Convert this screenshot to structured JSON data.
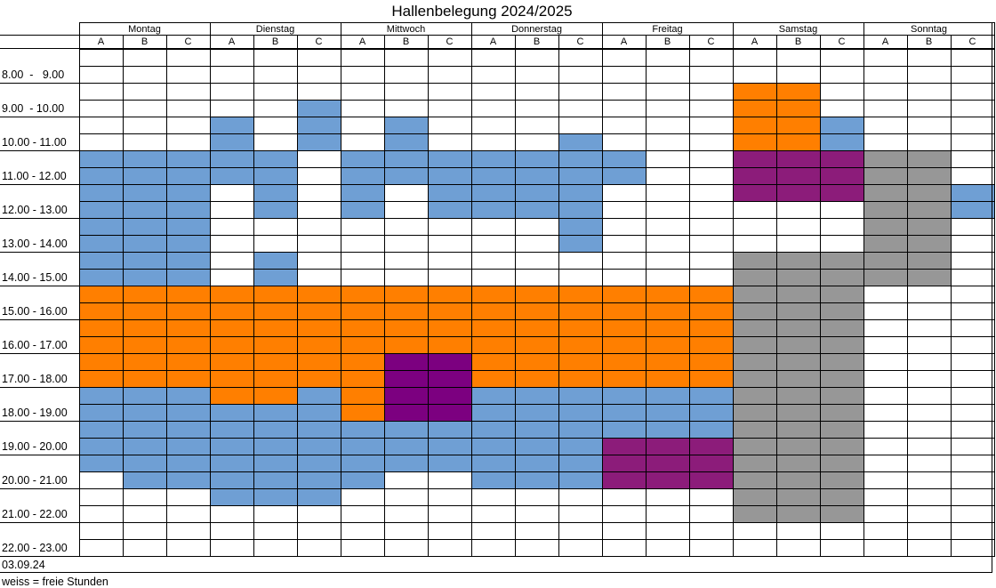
{
  "title": "Hallenbelegung 2024/2025",
  "days": [
    "Montag",
    "Dienstag",
    "Mittwoch",
    "Donnerstag",
    "Freitag",
    "Samstag",
    "Sonntag"
  ],
  "courts": [
    "A",
    "B",
    "C"
  ],
  "time_slots": [
    "8.00  -   9.00",
    "9.00  - 10.00",
    "10.00 - 11.00",
    "11.00 - 12.00",
    "12.00 - 13.00",
    "13.00 - 14.00",
    "14.00 - 15.00",
    "15.00 - 16.00",
    "16.00 - 17.00",
    "17.00 - 18.00",
    "18.00 - 19.00",
    "19.00 - 20.00",
    "20.00 - 21.00",
    "21.00 - 22.00",
    "22.00 - 23.00"
  ],
  "date": "03.09.24",
  "legend": "weiss = freie Stunden",
  "colors": {
    "W": "#ffffff",
    "B": "#6f9fd4",
    "O": "#ff7f00",
    "P": "#8c1c7a",
    "V": "#7c0080",
    "G": "#979797"
  },
  "grid_rows": [
    "WWW WWW WWW WWW WWW WWW WWW",
    "WWW WWW WWW WWW WWW WWW WWW",
    "WWW WWW WWW WWW WWW OOW WWW",
    "WWW WWB WWW WWW WWW OOW WWW",
    "WWW BWB WBW WWW WWW OOB WWW",
    "WWW BWB WBW WWB WWW OOB WWW",
    "BBB BBW BBB BBB BWW PPP GGW",
    "BBB BBW BBB BBB BWW PPP GGW",
    "BBB WBW BWB BBB WWW PPP GGB",
    "BBB WBW BWB BBB WWW WWW GGB",
    "BBB WWW WWW WWB WWW WWW GGW",
    "BBB WWW WWW WWB WWW WWW GGW",
    "BBB WBW WWW WWW WWW GGG GGW",
    "BBB WBW WWW WWW WWW GGG GGW",
    "OOO OOO OOO OOO OOO GGG WWW",
    "OOO OOO OOO OOO OOO GGG WWW",
    "OOO OOO OOO OOO OOO GGG WWW",
    "OOO OOO OOO OOO OOO GGG WWW",
    "OOO OOO OVV OOO OOO GGG WWW",
    "OOO OOO OVV OOO OOO GGG WWW",
    "BBB OOB OVV BBB BBB GGG WWW",
    "BBB BBB OVV BBB BBB GGG WWW",
    "BBB BBB BBB BBB BBB GGG WWW",
    "BBB BBB BBB BBB PPP GGG WWW",
    "BBB BBB BBB BBB PPP GGG WWW",
    "WBB BBB BWW BBB PPP GGG WWW",
    "WWW BBB WWW WWW WWW GGG WWW",
    "WWW WWW WWW WWW WWW GGG WWW",
    "WWW WWW WWW WWW WWW WWW WWW",
    "WWW WWW WWW WWW WWW WWW WWW"
  ]
}
